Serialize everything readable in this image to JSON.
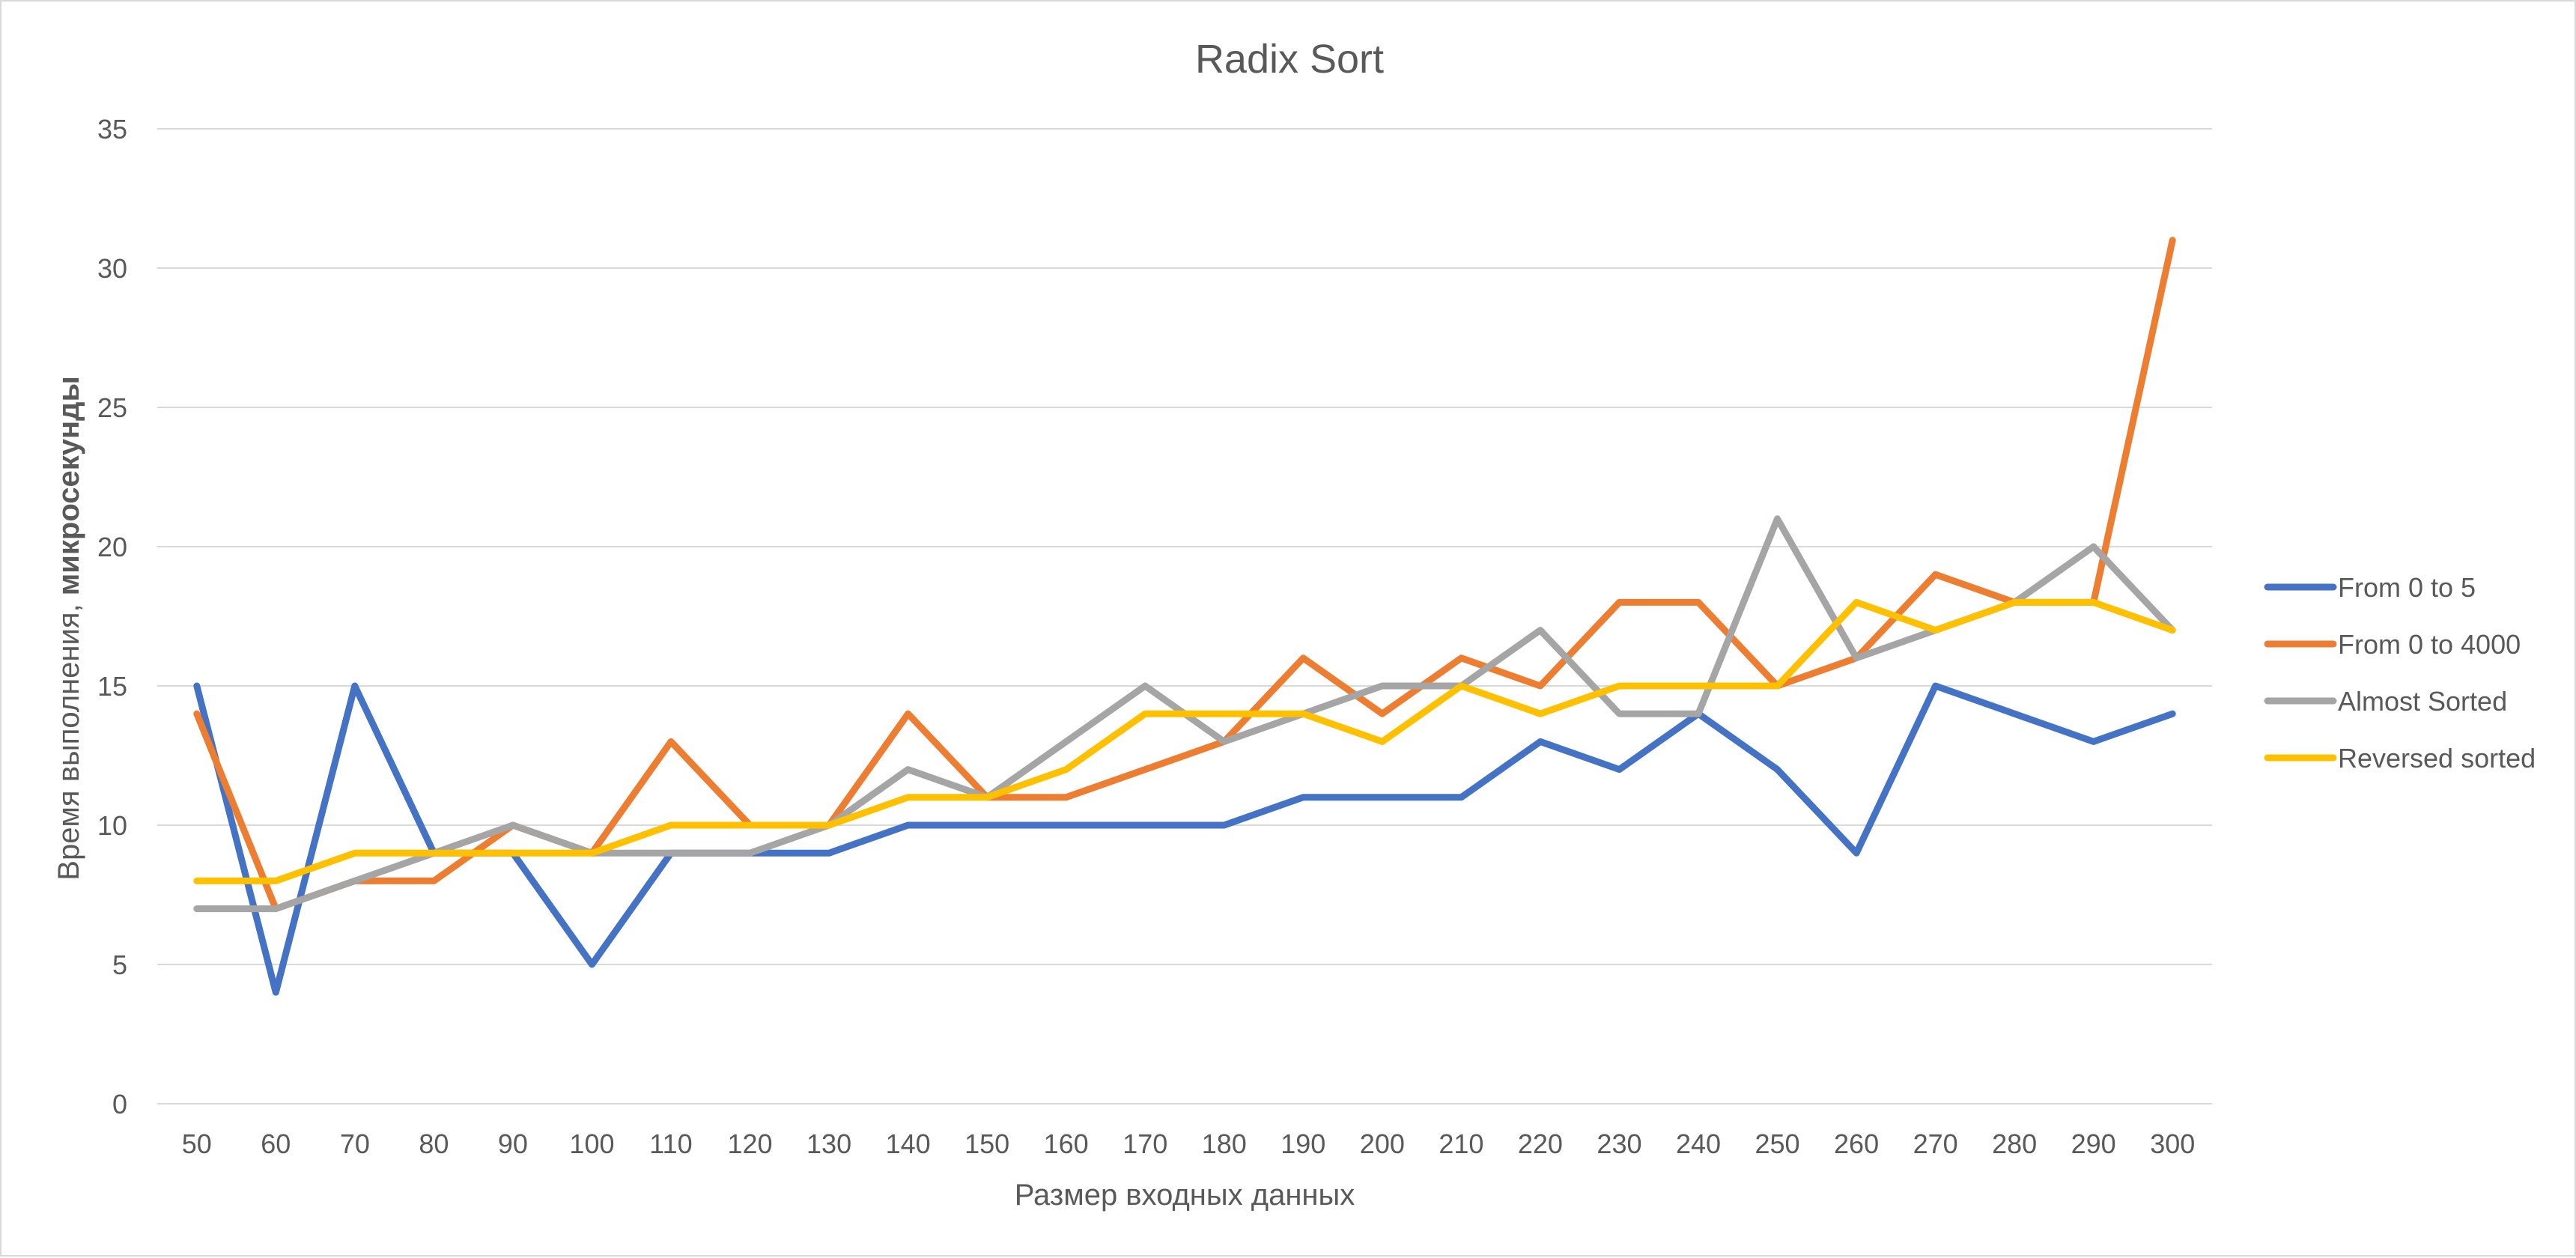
{
  "chart_data": {
    "type": "line",
    "title": "Radix Sort",
    "xlabel": "Размер входных данных",
    "ylabel_prefix": "Время выполнения, ",
    "ylabel_bold": "микросекунды",
    "categories": [
      "50",
      "60",
      "70",
      "80",
      "90",
      "100",
      "110",
      "120",
      "130",
      "140",
      "150",
      "160",
      "170",
      "180",
      "190",
      "200",
      "210",
      "220",
      "230",
      "240",
      "250",
      "260",
      "270",
      "280",
      "290",
      "300"
    ],
    "ylim": [
      0,
      35
    ],
    "yticks": [
      0,
      5,
      10,
      15,
      20,
      25,
      30,
      35
    ],
    "grid": true,
    "legend_position": "right",
    "series": [
      {
        "name": "From 0 to 5",
        "color": "#4472C4",
        "values": [
          15,
          4,
          15,
          9,
          9,
          5,
          9,
          9,
          9,
          10,
          10,
          10,
          10,
          10,
          11,
          11,
          11,
          13,
          12,
          14,
          12,
          9,
          15,
          14,
          13,
          14
        ]
      },
      {
        "name": "From 0 to 4000",
        "color": "#ED7D31",
        "values": [
          14,
          7,
          8,
          8,
          10,
          9,
          13,
          10,
          10,
          14,
          11,
          11,
          12,
          13,
          16,
          14,
          16,
          15,
          18,
          18,
          15,
          16,
          19,
          18,
          18,
          31
        ]
      },
      {
        "name": "Almost Sorted",
        "color": "#A5A5A5",
        "values": [
          7,
          7,
          8,
          9,
          10,
          9,
          9,
          9,
          10,
          12,
          11,
          13,
          15,
          13,
          14,
          15,
          15,
          17,
          14,
          14,
          21,
          16,
          17,
          18,
          20,
          17
        ]
      },
      {
        "name": "Reversed sorted",
        "color": "#FFC000",
        "values": [
          8,
          8,
          9,
          9,
          9,
          9,
          10,
          10,
          10,
          11,
          11,
          12,
          14,
          14,
          14,
          13,
          15,
          14,
          15,
          15,
          15,
          18,
          17,
          18,
          18,
          17
        ]
      }
    ]
  }
}
